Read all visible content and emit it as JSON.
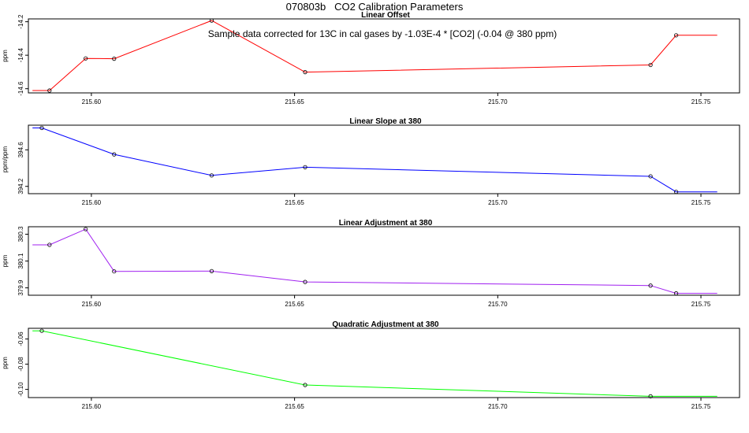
{
  "page": {
    "title": "070803b   CO2 Calibration Parameters",
    "annotation": "Sample data corrected for 13C in cal gases by -1.03E-4 * [CO2] (-0.04 @ 380 ppm)"
  },
  "chart_data": [
    {
      "type": "line",
      "title": "Linear Offset",
      "ylabel": "ppm",
      "xlim": [
        215.5845,
        215.7595
      ],
      "ylim": [
        -14.625,
        -14.183
      ],
      "xticks": [
        215.6,
        215.65,
        215.7,
        215.75
      ],
      "xtick_labels": [
        "215.60",
        "215.65",
        "215.70",
        "215.75"
      ],
      "yticks": [
        -14.2,
        -14.4,
        -14.6
      ],
      "ytick_labels": [
        "-14.2",
        "-14.4",
        "-14.6"
      ],
      "color": "#ff0000",
      "x": [
        215.5897,
        215.5986,
        215.6056,
        215.6296,
        215.6526,
        215.7376,
        215.7439
      ],
      "y": [
        -14.611,
        -14.419,
        -14.421,
        -14.193,
        -14.501,
        -14.458,
        -14.281
      ],
      "line_start": 215.5855,
      "line_end": 215.754
    },
    {
      "type": "line",
      "title": "Linear Slope at 380",
      "ylabel": "ppm/ppm",
      "xlim": [
        215.5845,
        215.7595
      ],
      "ylim": [
        394.12,
        394.87
      ],
      "xticks": [
        215.6,
        215.65,
        215.7,
        215.75
      ],
      "xtick_labels": [
        "215.60",
        "215.65",
        "215.70",
        "215.75"
      ],
      "yticks": [
        394.6,
        394.2
      ],
      "ytick_labels": [
        "394.6",
        "394.2"
      ],
      "color": "#0000ff",
      "x": [
        215.5878,
        215.6056,
        215.6296,
        215.6526,
        215.7376,
        215.7439
      ],
      "y": [
        394.84,
        394.55,
        394.32,
        394.41,
        394.31,
        394.14
      ],
      "line_start": 215.5855,
      "line_end": 215.754
    },
    {
      "type": "line",
      "title": "Linear Adjustment at 380",
      "ylabel": "ppm",
      "xlim": [
        215.5845,
        215.7595
      ],
      "ylim": [
        379.845,
        380.356
      ],
      "xticks": [
        215.6,
        215.65,
        215.7,
        215.75
      ],
      "xtick_labels": [
        "215.60",
        "215.65",
        "215.70",
        "215.75"
      ],
      "yticks": [
        380.3,
        380.1,
        379.9
      ],
      "ytick_labels": [
        "380.3",
        "380.1",
        "379.9"
      ],
      "color": "#a020f0",
      "x": [
        215.5897,
        215.5986,
        215.6056,
        215.6296,
        215.6526,
        215.7376,
        215.7439
      ],
      "y": [
        380.221,
        380.338,
        380.023,
        380.025,
        379.944,
        379.917,
        379.859
      ],
      "line_start": 215.5855,
      "line_end": 215.754
    },
    {
      "type": "line",
      "title": "Quadratic Adjustment at 380",
      "ylabel": "ppm",
      "xlim": [
        215.5845,
        215.7595
      ],
      "ylim": [
        -0.1065,
        -0.0515
      ],
      "xticks": [
        215.6,
        215.65,
        215.7,
        215.75
      ],
      "xtick_labels": [
        "215.60",
        "215.65",
        "215.70",
        "215.75"
      ],
      "yticks": [
        -0.06,
        -0.08,
        -0.1
      ],
      "ytick_labels": [
        "-0.06",
        "-0.08",
        "-0.10"
      ],
      "color": "#00ff00",
      "x": [
        215.5878,
        215.6526,
        215.7376
      ],
      "y": [
        -0.0535,
        -0.0965,
        -0.1055
      ],
      "line_start": 215.5855,
      "line_end": 215.754
    }
  ]
}
